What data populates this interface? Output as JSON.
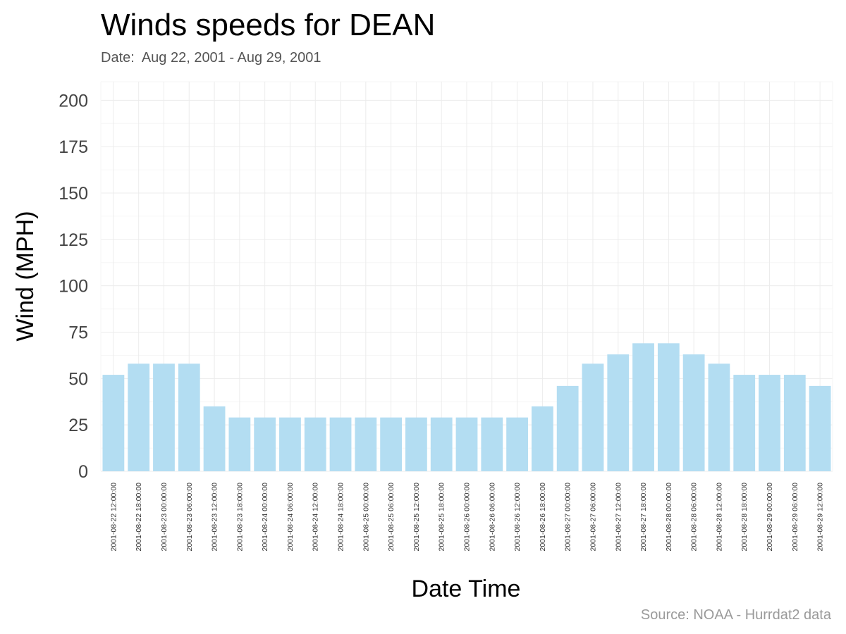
{
  "chart_data": {
    "type": "bar",
    "title": "Winds speeds for DEAN",
    "subtitle": "Date:  Aug 22, 2001 - Aug 29, 2001",
    "caption": "Source: NOAA - Hurrdat2 data",
    "xlabel": "Date Time",
    "ylabel": "Wind (MPH)",
    "ylim": [
      0,
      210
    ],
    "yticks": [
      0,
      25,
      50,
      75,
      100,
      125,
      150,
      175,
      200
    ],
    "grid": true,
    "bar_color": "#b3ddf2",
    "categories": [
      "2001-08-22 12:00:00",
      "2001-08-22 18:00:00",
      "2001-08-23 00:00:00",
      "2001-08-23 06:00:00",
      "2001-08-23 12:00:00",
      "2001-08-23 18:00:00",
      "2001-08-24 00:00:00",
      "2001-08-24 06:00:00",
      "2001-08-24 12:00:00",
      "2001-08-24 18:00:00",
      "2001-08-25 00:00:00",
      "2001-08-25 06:00:00",
      "2001-08-25 12:00:00",
      "2001-08-25 18:00:00",
      "2001-08-26 00:00:00",
      "2001-08-26 06:00:00",
      "2001-08-26 12:00:00",
      "2001-08-26 18:00:00",
      "2001-08-27 00:00:00",
      "2001-08-27 06:00:00",
      "2001-08-27 12:00:00",
      "2001-08-27 18:00:00",
      "2001-08-28 00:00:00",
      "2001-08-28 06:00:00",
      "2001-08-28 12:00:00",
      "2001-08-28 18:00:00",
      "2001-08-29 00:00:00",
      "2001-08-29 06:00:00",
      "2001-08-29 12:00:00"
    ],
    "values": [
      52,
      58,
      58,
      58,
      35,
      29,
      29,
      29,
      29,
      29,
      29,
      29,
      29,
      29,
      29,
      29,
      29,
      35,
      46,
      58,
      63,
      69,
      69,
      63,
      58,
      52,
      52,
      52,
      46
    ]
  }
}
